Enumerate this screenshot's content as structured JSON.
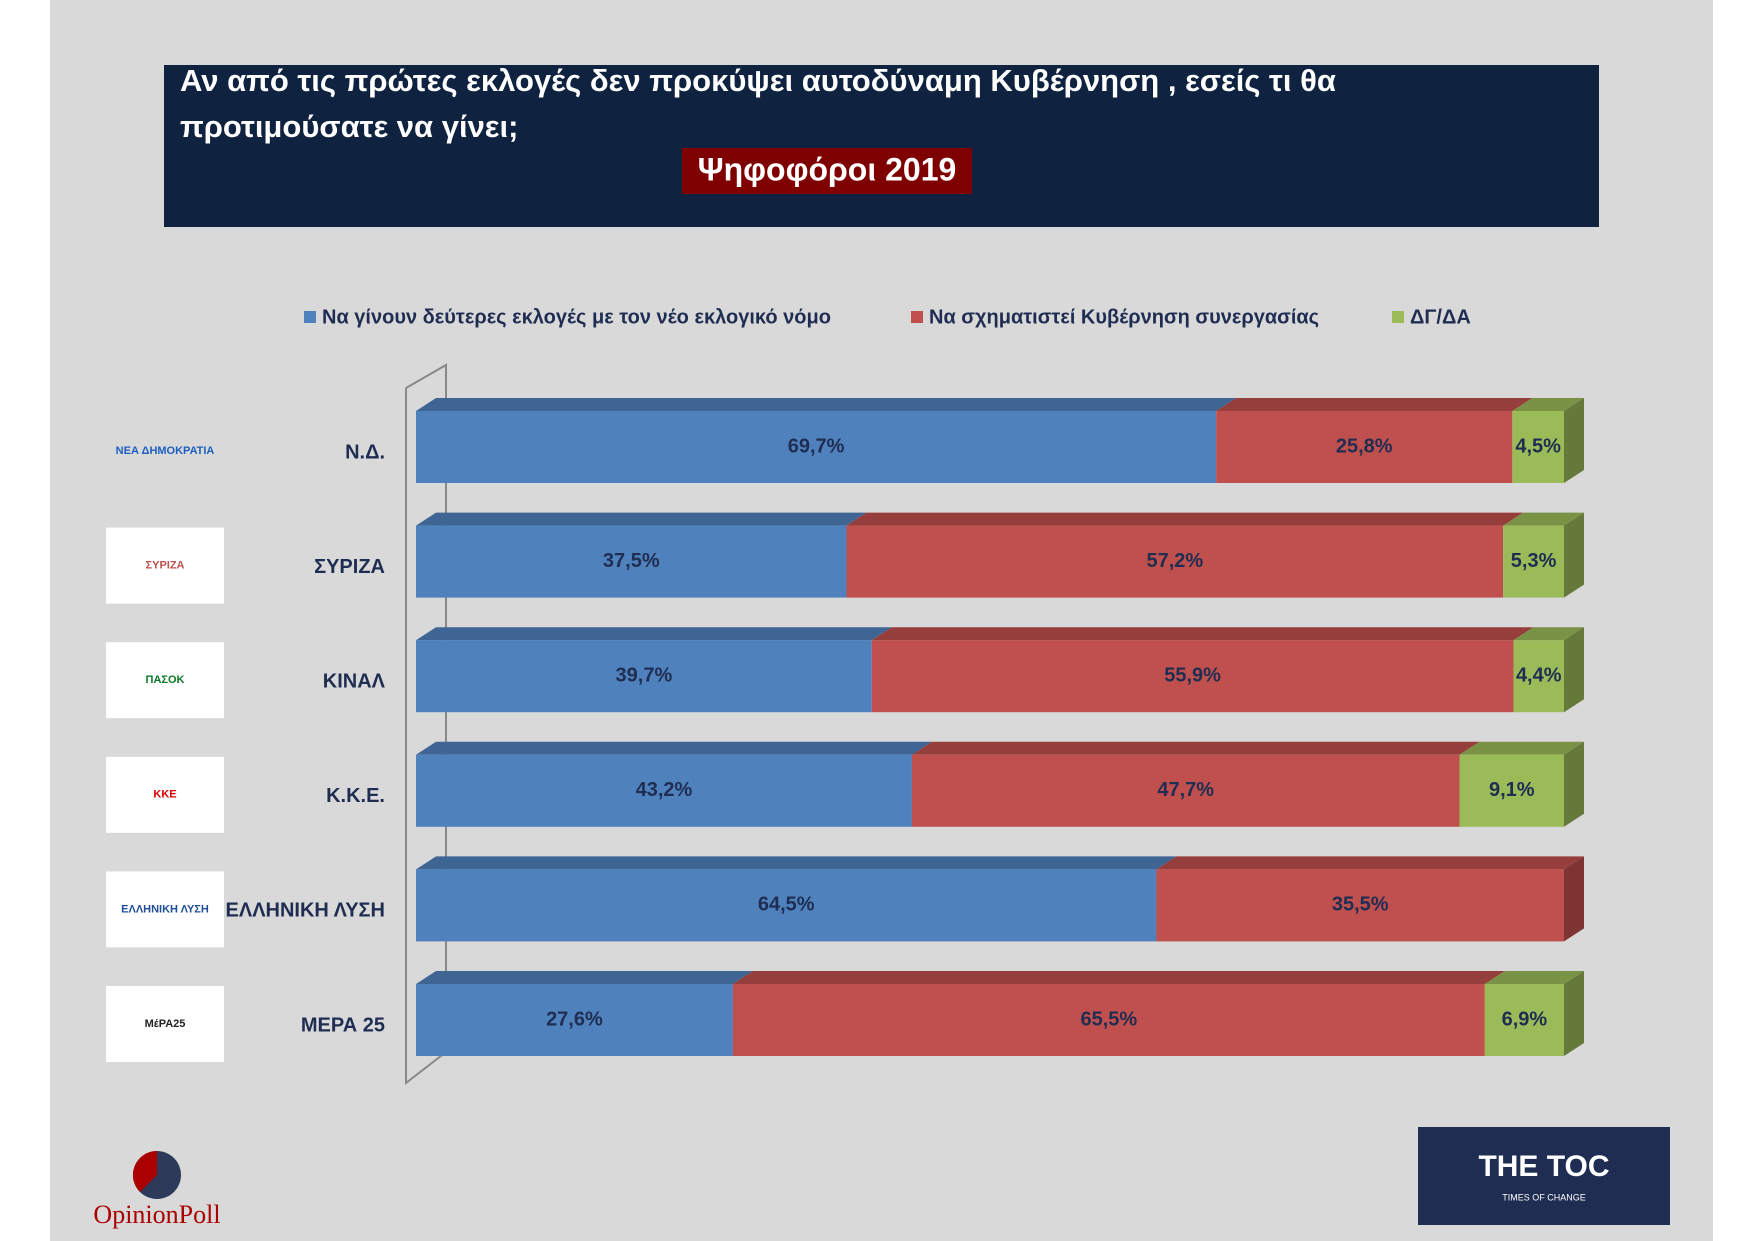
{
  "chart_data": {
    "type": "stacked-bar-3d",
    "title": "Αν από τις πρώτες εκλογές δεν προκύψει αυτοδύναμη Κυβέρνηση , εσείς τι θα προτιμούσατε να γίνει;",
    "subtitle": "Ψηφοφόροι 2019",
    "categories": [
      "Ν.Δ.",
      "ΣΥΡΙΖΑ",
      "ΚΙΝΑΛ",
      "Κ.Κ.Ε.",
      "ΕΛΛΗΝΙΚΗ ΛΥΣΗ",
      "ΜΕΡΑ 25"
    ],
    "xlim": [
      0,
      100
    ],
    "series": [
      {
        "name": "Να γίνουν δεύτερες εκλογές με τον νέο εκλογικό νόμο",
        "color": "#4f81bd",
        "values": [
          69.7,
          37.5,
          39.7,
          43.2,
          64.5,
          27.6
        ],
        "value_labels": [
          "69,7%",
          "37,5%",
          "39,7%",
          "43,2%",
          "64,5%",
          "27,6%"
        ]
      },
      {
        "name": "Να σχηματιστεί Κυβέρνηση συνεργασίας",
        "color": "#c0504d",
        "values": [
          25.8,
          57.2,
          55.9,
          47.7,
          35.5,
          65.5
        ],
        "value_labels": [
          "25,8%",
          "57,2%",
          "55,9%",
          "47,7%",
          "35,5%",
          "65,5%"
        ]
      },
      {
        "name": "ΔΓ/ΔΑ",
        "color": "#9bbb59",
        "values": [
          4.5,
          5.3,
          4.4,
          9.1,
          null,
          6.9
        ],
        "value_labels": [
          "4,5%",
          "5,3%",
          "4,4%",
          "9,1%",
          null,
          "6,9%"
        ]
      }
    ]
  },
  "logos": [
    "ΝΕΑ ΔΗΜΟΚΡΑΤΙΑ",
    "ΣΥΡΙΖΑ",
    "ΠΑΣΟΚ",
    "ΚΚΕ",
    "ΕΛΛΗΝΙΚΗ ΛΥΣΗ",
    "ΜέΡΑ25"
  ],
  "footer": {
    "left": "OpinionPoll",
    "right": "THE TOC",
    "right_sub": "TIMES OF CHANGE"
  }
}
